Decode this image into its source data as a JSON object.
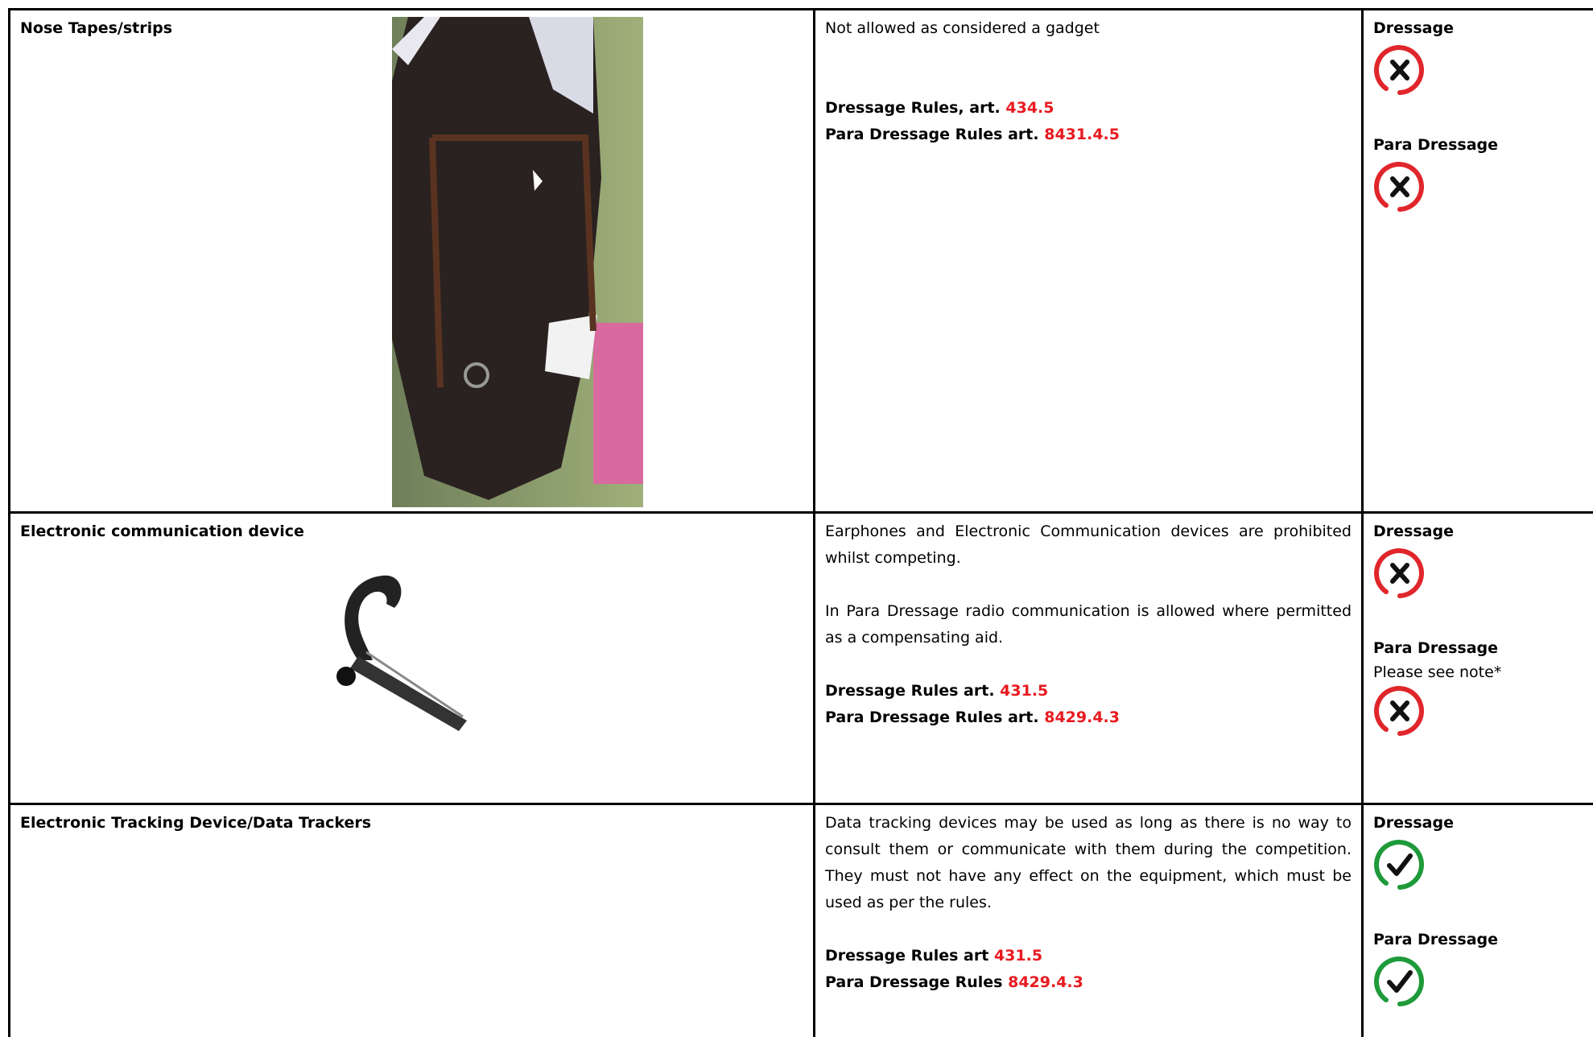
{
  "rows": [
    {
      "item": "Nose Tapes/strips",
      "description": [
        "Not allowed as considered a gadget"
      ],
      "rules": [
        {
          "label": "Dressage Rules, art.",
          "article": "434.5"
        },
        {
          "label": "Para Dressage Rules art.",
          "article": "8431.4.5"
        }
      ],
      "status": [
        {
          "discipline": "Dressage",
          "allowed": false
        },
        {
          "discipline": "Para Dressage",
          "allowed": false
        }
      ]
    },
    {
      "item": "Electronic communication device",
      "description": [
        "Earphones and Electronic Communication devices are prohibited whilst competing.",
        "In Para Dressage radio communication is allowed where permitted as a compensating aid."
      ],
      "rules": [
        {
          "label": "Dressage Rules art.",
          "article": "431.5"
        },
        {
          "label": "Para Dressage Rules art.",
          "article": "8429.4.3"
        }
      ],
      "status": [
        {
          "discipline": "Dressage",
          "allowed": false
        },
        {
          "discipline": "Para Dressage",
          "note": "Please see note*",
          "allowed": false
        }
      ]
    },
    {
      "item": "Electronic Tracking Device/Data Trackers",
      "description": [
        "Data tracking devices may be used as long as there is no way to consult them or communicate with them during the competition. They must not have any effect on the equipment, which must be used as per the rules."
      ],
      "rules": [
        {
          "label": "Dressage Rules art",
          "article": "431.5"
        },
        {
          "label": "Para Dressage Rules",
          "article": "8429.4.3"
        }
      ],
      "status": [
        {
          "discipline": "Dressage",
          "allowed": true
        },
        {
          "discipline": "Para Dressage",
          "allowed": true
        }
      ]
    }
  ]
}
